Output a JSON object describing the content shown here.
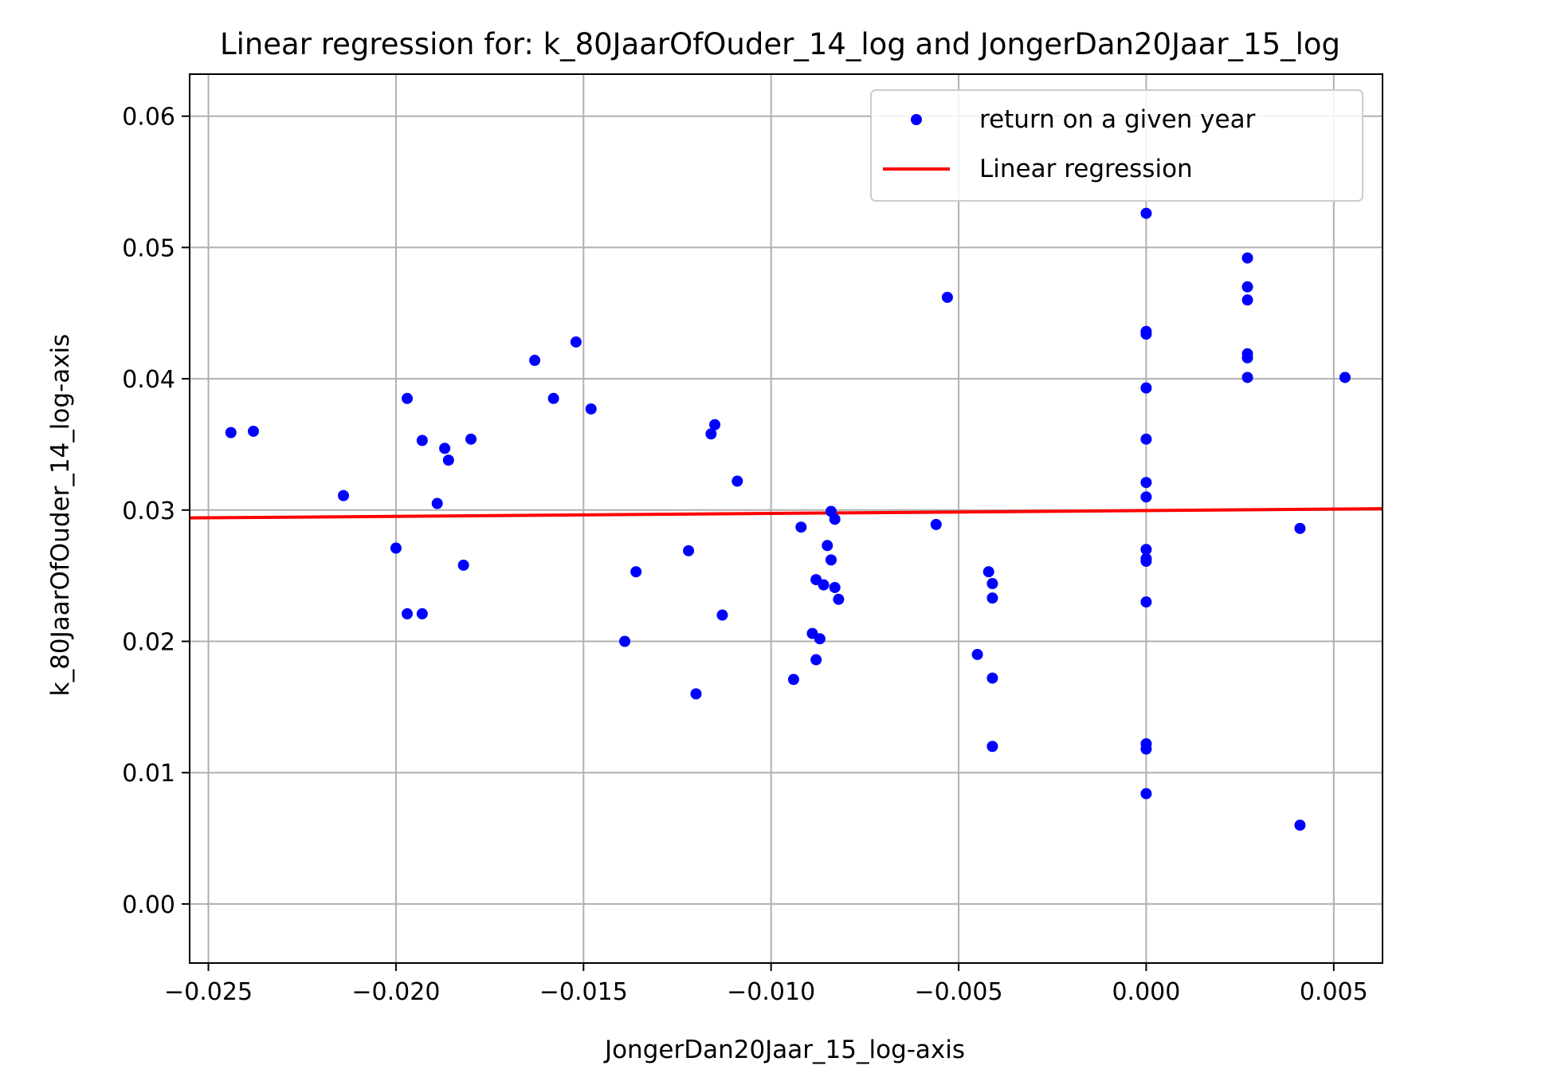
{
  "chart_data": {
    "type": "scatter",
    "title": "Linear regression for: k_80JaarOfOuder_14_log and JongerDan20Jaar_15_log",
    "xlabel": "JongerDan20Jaar_15_log-axis",
    "ylabel": "k_80JaarOfOuder_14_log-axis",
    "xlim": [
      -0.0255,
      0.0063
    ],
    "ylim": [
      -0.0045,
      0.0632
    ],
    "xticks": [
      -0.025,
      -0.02,
      -0.015,
      -0.01,
      -0.005,
      0.0,
      0.005
    ],
    "xtick_labels": [
      "−0.025",
      "−0.020",
      "−0.015",
      "−0.010",
      "−0.005",
      "0.000",
      "0.005"
    ],
    "yticks": [
      0.0,
      0.01,
      0.02,
      0.03,
      0.04,
      0.05,
      0.06
    ],
    "ytick_labels": [
      "0.00",
      "0.01",
      "0.02",
      "0.03",
      "0.04",
      "0.05",
      "0.06"
    ],
    "grid": true,
    "legend_position": "top-right",
    "series": [
      {
        "name": "return on a given year",
        "kind": "scatter",
        "color": "#0000ff",
        "points": [
          [
            -0.0244,
            0.0359
          ],
          [
            -0.0238,
            0.036
          ],
          [
            -0.0214,
            0.0311
          ],
          [
            -0.02,
            0.0271
          ],
          [
            -0.0197,
            0.0385
          ],
          [
            -0.0197,
            0.0221
          ],
          [
            -0.0193,
            0.0353
          ],
          [
            -0.0193,
            0.0221
          ],
          [
            -0.0189,
            0.0305
          ],
          [
            -0.0187,
            0.0347
          ],
          [
            -0.0186,
            0.0338
          ],
          [
            -0.0182,
            0.0258
          ],
          [
            -0.018,
            0.0354
          ],
          [
            -0.0163,
            0.0414
          ],
          [
            -0.0158,
            0.0385
          ],
          [
            -0.0152,
            0.0428
          ],
          [
            -0.0148,
            0.0377
          ],
          [
            -0.0139,
            0.02
          ],
          [
            -0.0136,
            0.0253
          ],
          [
            -0.0122,
            0.0269
          ],
          [
            -0.012,
            0.016
          ],
          [
            -0.0116,
            0.0358
          ],
          [
            -0.0115,
            0.0365
          ],
          [
            -0.0113,
            0.022
          ],
          [
            -0.0109,
            0.0322
          ],
          [
            -0.0094,
            0.0171
          ],
          [
            -0.0092,
            0.0287
          ],
          [
            -0.0089,
            0.0206
          ],
          [
            -0.0088,
            0.0186
          ],
          [
            -0.0088,
            0.0247
          ],
          [
            -0.0087,
            0.0202
          ],
          [
            -0.0086,
            0.0243
          ],
          [
            -0.0085,
            0.0273
          ],
          [
            -0.0084,
            0.0299
          ],
          [
            -0.0084,
            0.0262
          ],
          [
            -0.0083,
            0.0293
          ],
          [
            -0.0083,
            0.0241
          ],
          [
            -0.0082,
            0.0232
          ],
          [
            -0.0056,
            0.0289
          ],
          [
            -0.0053,
            0.0462
          ],
          [
            -0.0045,
            0.019
          ],
          [
            -0.0042,
            0.0253
          ],
          [
            -0.0041,
            0.0244
          ],
          [
            -0.0041,
            0.0233
          ],
          [
            -0.0041,
            0.0172
          ],
          [
            -0.0041,
            0.012
          ],
          [
            0.0,
            0.0526
          ],
          [
            0.0,
            0.0436
          ],
          [
            0.0,
            0.0434
          ],
          [
            0.0,
            0.0393
          ],
          [
            0.0,
            0.0354
          ],
          [
            0.0,
            0.0321
          ],
          [
            0.0,
            0.031
          ],
          [
            0.0,
            0.027
          ],
          [
            0.0,
            0.0263
          ],
          [
            0.0,
            0.0261
          ],
          [
            0.0,
            0.023
          ],
          [
            0.0,
            0.0122
          ],
          [
            0.0,
            0.0118
          ],
          [
            0.0,
            0.0084
          ],
          [
            0.0027,
            0.0492
          ],
          [
            0.0027,
            0.047
          ],
          [
            0.0027,
            0.046
          ],
          [
            0.0027,
            0.0419
          ],
          [
            0.0027,
            0.0416
          ],
          [
            0.0027,
            0.0401
          ],
          [
            0.0041,
            0.0286
          ],
          [
            0.0041,
            0.006
          ],
          [
            0.0053,
            0.0401
          ]
        ]
      },
      {
        "name": "Linear regression",
        "kind": "line",
        "color": "#ff0000",
        "points": [
          [
            -0.0255,
            0.0294
          ],
          [
            0.0063,
            0.0301
          ]
        ]
      }
    ]
  }
}
